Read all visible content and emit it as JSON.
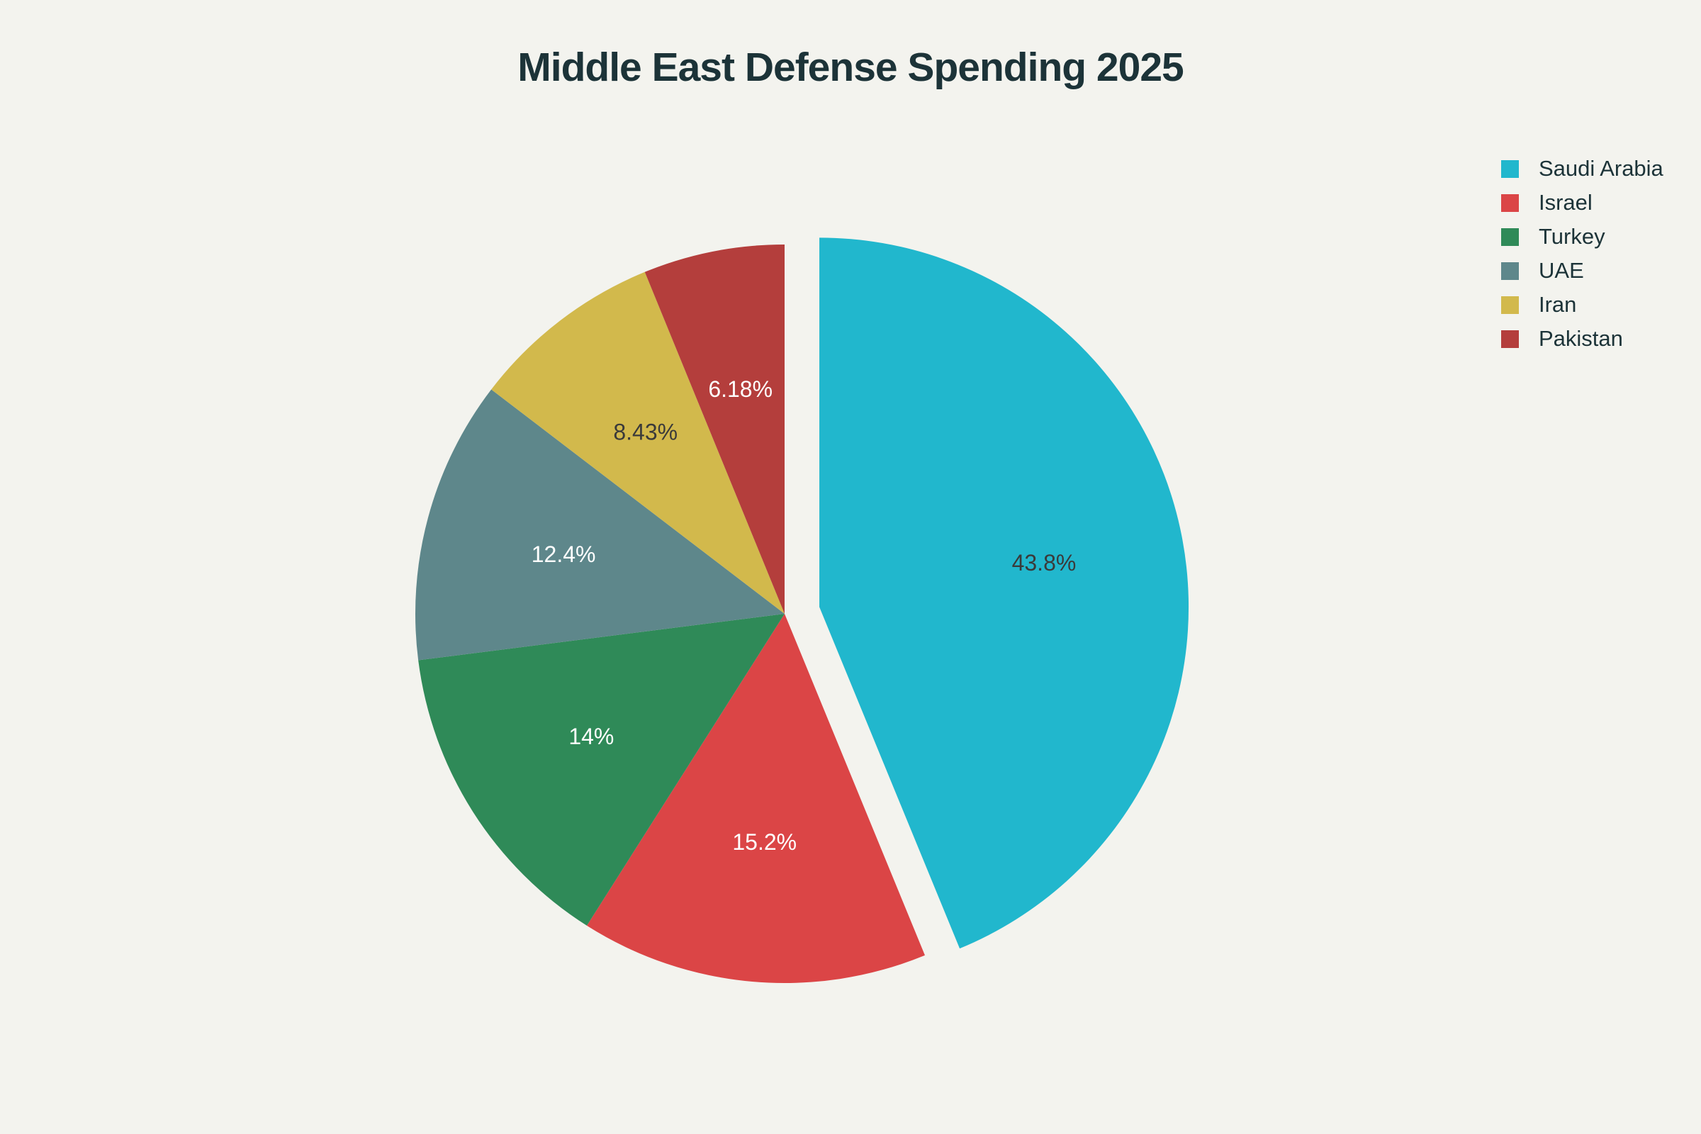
{
  "chart_data": {
    "type": "pie",
    "title": "Middle East Defense Spending 2025",
    "categories": [
      "Saudi Arabia",
      "Israel",
      "Turkey",
      "UAE",
      "Iran",
      "Pakistan"
    ],
    "values": [
      43.8,
      15.2,
      14.0,
      12.4,
      8.43,
      6.18
    ],
    "labels": [
      "43.8%",
      "15.2%",
      "14%",
      "12.4%",
      "8.43%",
      "6.18%"
    ],
    "colors": [
      "#21b7cd",
      "#db4546",
      "#2f8a58",
      "#5e878b",
      "#d2b94c",
      "#b43e3c"
    ],
    "label_colors": [
      "#3a3a3a",
      "#ffffff",
      "#ffffff",
      "#ffffff",
      "#3a3a3a",
      "#ffffff"
    ],
    "pulled_slice": "Saudi Arabia",
    "direction": "clockwise",
    "start_angle": "12 o'clock",
    "legend": "top-right"
  }
}
